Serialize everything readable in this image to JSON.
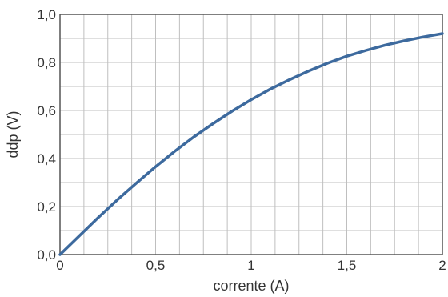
{
  "chart_data": {
    "type": "line",
    "xlabel": "corrente (A)",
    "ylabel": "ddp (V)",
    "xlim": [
      0,
      2
    ],
    "ylim": [
      0,
      1.0
    ],
    "x_ticks": [
      {
        "value": 0,
        "label": "0"
      },
      {
        "value": 0.5,
        "label": "0,5"
      },
      {
        "value": 1,
        "label": "1"
      },
      {
        "value": 1.5,
        "label": "1,5"
      },
      {
        "value": 2,
        "label": "2"
      }
    ],
    "y_ticks": [
      {
        "value": 0,
        "label": "0,0"
      },
      {
        "value": 0.2,
        "label": "0,2"
      },
      {
        "value": 0.4,
        "label": "0,4"
      },
      {
        "value": 0.6,
        "label": "0,6"
      },
      {
        "value": 0.8,
        "label": "0,8"
      },
      {
        "value": 1.0,
        "label": "1,0"
      }
    ],
    "grid": true,
    "grid_x_step": 0.125,
    "grid_y_step": 0.1,
    "series": [
      {
        "color": "#3d6a9e",
        "x": [
          0,
          0.1,
          0.2,
          0.3,
          0.4,
          0.5,
          0.6,
          0.7,
          0.8,
          0.9,
          1.0,
          1.1,
          1.2,
          1.3,
          1.4,
          1.5,
          1.6,
          1.7,
          1.8,
          1.9,
          2.0
        ],
        "y": [
          0,
          0.077,
          0.154,
          0.228,
          0.298,
          0.366,
          0.43,
          0.49,
          0.545,
          0.597,
          0.645,
          0.689,
          0.728,
          0.764,
          0.797,
          0.826,
          0.85,
          0.872,
          0.89,
          0.906,
          0.92
        ]
      }
    ]
  },
  "colors": {
    "grid": "#bfbfbf",
    "axis": "#555555",
    "text": "#333333"
  }
}
